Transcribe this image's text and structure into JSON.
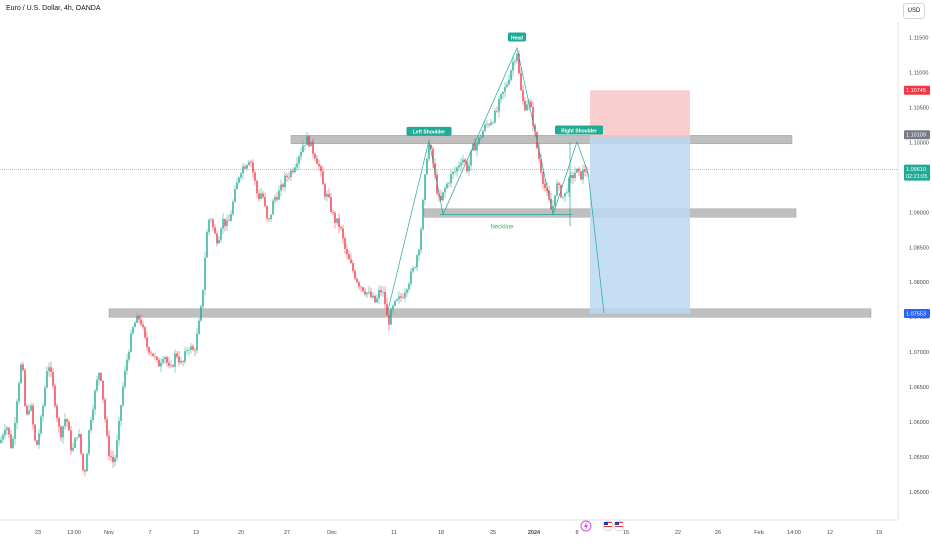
{
  "header": {
    "symbol_title": "Euro / U.S. Dollar, 4h, OANDA",
    "currency_button": "USD"
  },
  "colors": {
    "up": "#22ab94",
    "down": "#f23645",
    "zone": "#9e9e9e",
    "stop_zone": "#f7c6c6",
    "target_zone": "#bcd8f2",
    "pattern_line": "#26a69a",
    "current_price_tag": "#22ab94",
    "stop_tag": "#f23645",
    "target_tag": "#2962ff",
    "resistance_tag": "#787b86"
  },
  "chart_data": {
    "type": "candlestick",
    "symbol": "EURUSD",
    "timeframe": "4h",
    "ylim": [
      1.046,
      1.1175
    ],
    "y_ticks": [
      "1.11500",
      "1.11000",
      "1.10500",
      "1.10000",
      "1.09500",
      "1.09000",
      "1.08500",
      "1.08000",
      "1.07500",
      "1.07000",
      "1.06500",
      "1.06000",
      "1.05500",
      "1.05000"
    ],
    "x_ticks": [
      "23",
      "13:00",
      "Nov",
      "7",
      "13",
      "20",
      "27",
      "Dec",
      "11",
      "18",
      "25",
      "2024",
      "8",
      "15",
      "22",
      "26",
      "Feb",
      "14:00",
      "12",
      "19"
    ],
    "bold_x_ticks": [
      "2024"
    ],
    "price_path": [
      [
        0,
        1.057
      ],
      [
        6,
        1.06
      ],
      [
        12,
        1.056
      ],
      [
        18,
        1.065
      ],
      [
        22,
        1.069
      ],
      [
        26,
        1.06
      ],
      [
        30,
        1.063
      ],
      [
        36,
        1.056
      ],
      [
        42,
        1.061
      ],
      [
        48,
        1.069
      ],
      [
        54,
        1.064
      ],
      [
        60,
        1.058
      ],
      [
        66,
        1.061
      ],
      [
        72,
        1.0555
      ],
      [
        78,
        1.059
      ],
      [
        84,
        1.052
      ],
      [
        90,
        1.06
      ],
      [
        96,
        1.065
      ],
      [
        100,
        1.068
      ],
      [
        104,
        1.062
      ],
      [
        108,
        1.056
      ],
      [
        114,
        1.054
      ],
      [
        118,
        1.058
      ],
      [
        122,
        1.064
      ],
      [
        128,
        1.07
      ],
      [
        134,
        1.074
      ],
      [
        140,
        1.075
      ],
      [
        146,
        1.071
      ],
      [
        152,
        1.07
      ],
      [
        158,
        1.068
      ],
      [
        164,
        1.07
      ],
      [
        170,
        1.067
      ],
      [
        176,
        1.07
      ],
      [
        182,
        1.068
      ],
      [
        188,
        1.071
      ],
      [
        194,
        1.07
      ],
      [
        198,
        1.073
      ],
      [
        202,
        1.077
      ],
      [
        206,
        1.086
      ],
      [
        210,
        1.09
      ],
      [
        214,
        1.087
      ],
      [
        218,
        1.086
      ],
      [
        222,
        1.089
      ],
      [
        228,
        1.088
      ],
      [
        234,
        1.092
      ],
      [
        240,
        1.096
      ],
      [
        246,
        1.097
      ],
      [
        250,
        1.098
      ],
      [
        254,
        1.095
      ],
      [
        258,
        1.092
      ],
      [
        262,
        1.093
      ],
      [
        268,
        1.088
      ],
      [
        274,
        1.092
      ],
      [
        280,
        1.093
      ],
      [
        286,
        1.095
      ],
      [
        292,
        1.096
      ],
      [
        298,
        1.098
      ],
      [
        304,
        1.1
      ],
      [
        308,
        1.1005
      ],
      [
        312,
        1.099
      ],
      [
        316,
        1.098
      ],
      [
        320,
        1.096
      ],
      [
        324,
        1.093
      ],
      [
        328,
        1.092
      ],
      [
        334,
        1.089
      ],
      [
        340,
        1.088
      ],
      [
        346,
        1.084
      ],
      [
        352,
        1.082
      ],
      [
        358,
        1.08
      ],
      [
        364,
        1.079
      ],
      [
        370,
        1.078
      ],
      [
        376,
        1.077
      ],
      [
        380,
        1.079
      ],
      [
        384,
        1.078
      ],
      [
        388,
        1.074
      ],
      [
        392,
        1.076
      ],
      [
        396,
        1.077
      ],
      [
        402,
        1.078
      ],
      [
        408,
        1.08
      ],
      [
        414,
        1.082
      ],
      [
        420,
        1.086
      ],
      [
        424,
        1.093
      ],
      [
        428,
        1.1
      ],
      [
        432,
        1.098
      ],
      [
        436,
        1.094
      ],
      [
        440,
        1.091
      ],
      [
        444,
        1.093
      ],
      [
        450,
        1.095
      ],
      [
        456,
        1.096
      ],
      [
        462,
        1.098
      ],
      [
        468,
        1.096
      ],
      [
        472,
        1.099
      ],
      [
        478,
        1.1
      ],
      [
        484,
        1.102
      ],
      [
        490,
        1.103
      ],
      [
        496,
        1.104
      ],
      [
        500,
        1.106
      ],
      [
        506,
        1.108
      ],
      [
        510,
        1.11
      ],
      [
        514,
        1.112
      ],
      [
        517,
        1.113
      ],
      [
        520,
        1.108
      ],
      [
        524,
        1.105
      ],
      [
        528,
        1.106
      ],
      [
        532,
        1.104
      ],
      [
        536,
        1.1
      ],
      [
        540,
        1.097
      ],
      [
        544,
        1.094
      ],
      [
        548,
        1.092
      ],
      [
        552,
        1.09
      ],
      [
        556,
        1.094
      ],
      [
        560,
        1.093
      ],
      [
        564,
        1.092
      ],
      [
        568,
        1.094
      ],
      [
        572,
        1.095
      ],
      [
        576,
        1.096
      ],
      [
        580,
        1.095
      ],
      [
        584,
        1.096
      ],
      [
        588,
        1.0961
      ]
    ],
    "zones": [
      {
        "label": "resistance",
        "price_high": 1.101,
        "price_low": 1.0998,
        "x_start": 291,
        "x_end": 792
      },
      {
        "label": "neckline",
        "price_high": 1.0905,
        "price_low": 1.0893,
        "x_start": 424,
        "x_end": 796
      },
      {
        "label": "support",
        "price_high": 1.0762,
        "price_low": 1.075,
        "x_start": 109,
        "x_end": 871
      }
    ],
    "pattern_points": [
      [
        388,
        1.076
      ],
      [
        429,
        1.1003
      ],
      [
        443,
        1.0897
      ],
      [
        517,
        1.1135
      ],
      [
        553,
        1.0897
      ],
      [
        577,
        1.1001
      ],
      [
        588,
        1.0957
      ],
      [
        604,
        1.0756
      ]
    ],
    "neckline_segment": [
      [
        440,
        1.0897
      ],
      [
        572,
        1.0897
      ]
    ],
    "annotations": [
      {
        "text": "Head",
        "x": 517,
        "price": 1.115
      },
      {
        "text": "Left Shoulder",
        "x": 429,
        "price": 1.1015
      },
      {
        "text": "Right Shoulder",
        "x": 579,
        "price": 1.1017
      },
      {
        "text": "Neckline",
        "x": 502,
        "price": 1.088
      }
    ],
    "position": {
      "type": "short",
      "entry": 1.1008,
      "stop": 1.10745,
      "target": 1.07553,
      "x_start": 590,
      "x_end": 690
    },
    "price_tags": [
      {
        "kind": "stop",
        "value": "1.10745",
        "price": 1.10745
      },
      {
        "kind": "resistance",
        "value": "1.10109",
        "price": 1.10109
      },
      {
        "kind": "current",
        "value": "1.09610",
        "sub": "02:21:05",
        "price": 1.0961
      },
      {
        "kind": "target",
        "value": "1.07553",
        "price": 1.07553
      }
    ],
    "grid": false
  },
  "event_icons": [
    "lightning-icon",
    "us-flag-icon",
    "us-flag-icon"
  ]
}
